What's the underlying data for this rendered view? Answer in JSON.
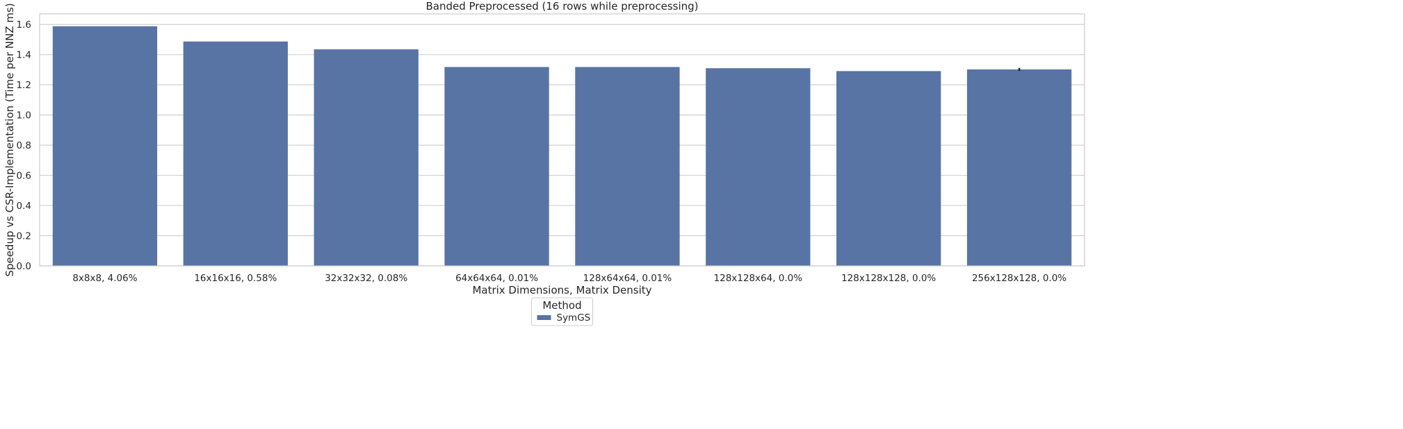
{
  "chart_data": {
    "type": "bar",
    "title": "Banded Preprocessed (16 rows while preprocessing)",
    "xlabel": "Matrix Dimensions, Matrix Density",
    "ylabel": "Speedup vs CSR-Implementation (Time per NNZ ms)",
    "categories": [
      "8x8x8, 4.06%",
      "16x16x16, 0.58%",
      "32x32x32, 0.08%",
      "64x64x64, 0.01%",
      "128x64x64, 0.01%",
      "128x128x64, 0.0%",
      "128x128x128, 0.0%",
      "256x128x128, 0.0%"
    ],
    "series": [
      {
        "name": "SymGS",
        "values": [
          1.588,
          1.487,
          1.435,
          1.318,
          1.318,
          1.31,
          1.291,
          1.302
        ],
        "error_bars": [
          [
            1.588,
            1.588
          ],
          [
            1.487,
            1.487
          ],
          [
            1.435,
            1.435
          ],
          [
            1.318,
            1.318
          ],
          [
            1.318,
            1.318
          ],
          [
            1.31,
            1.31
          ],
          [
            1.291,
            1.291
          ],
          [
            1.292,
            1.312
          ]
        ]
      }
    ],
    "ylim": [
      0,
      1.67
    ],
    "yticks": [
      0.0,
      0.2,
      0.4,
      0.6,
      0.8,
      1.0,
      1.2,
      1.4,
      1.6
    ],
    "ytick_labels": [
      "0.0",
      "0.2",
      "0.4",
      "0.6",
      "0.8",
      "1.0",
      "1.2",
      "1.4",
      "1.6"
    ],
    "grid": true,
    "legend": {
      "title": "Method",
      "placement": "bottom-center"
    },
    "colors": {
      "bar": "#5874a5",
      "grid": "#d0d0d4",
      "error_bar": "#262626"
    }
  }
}
